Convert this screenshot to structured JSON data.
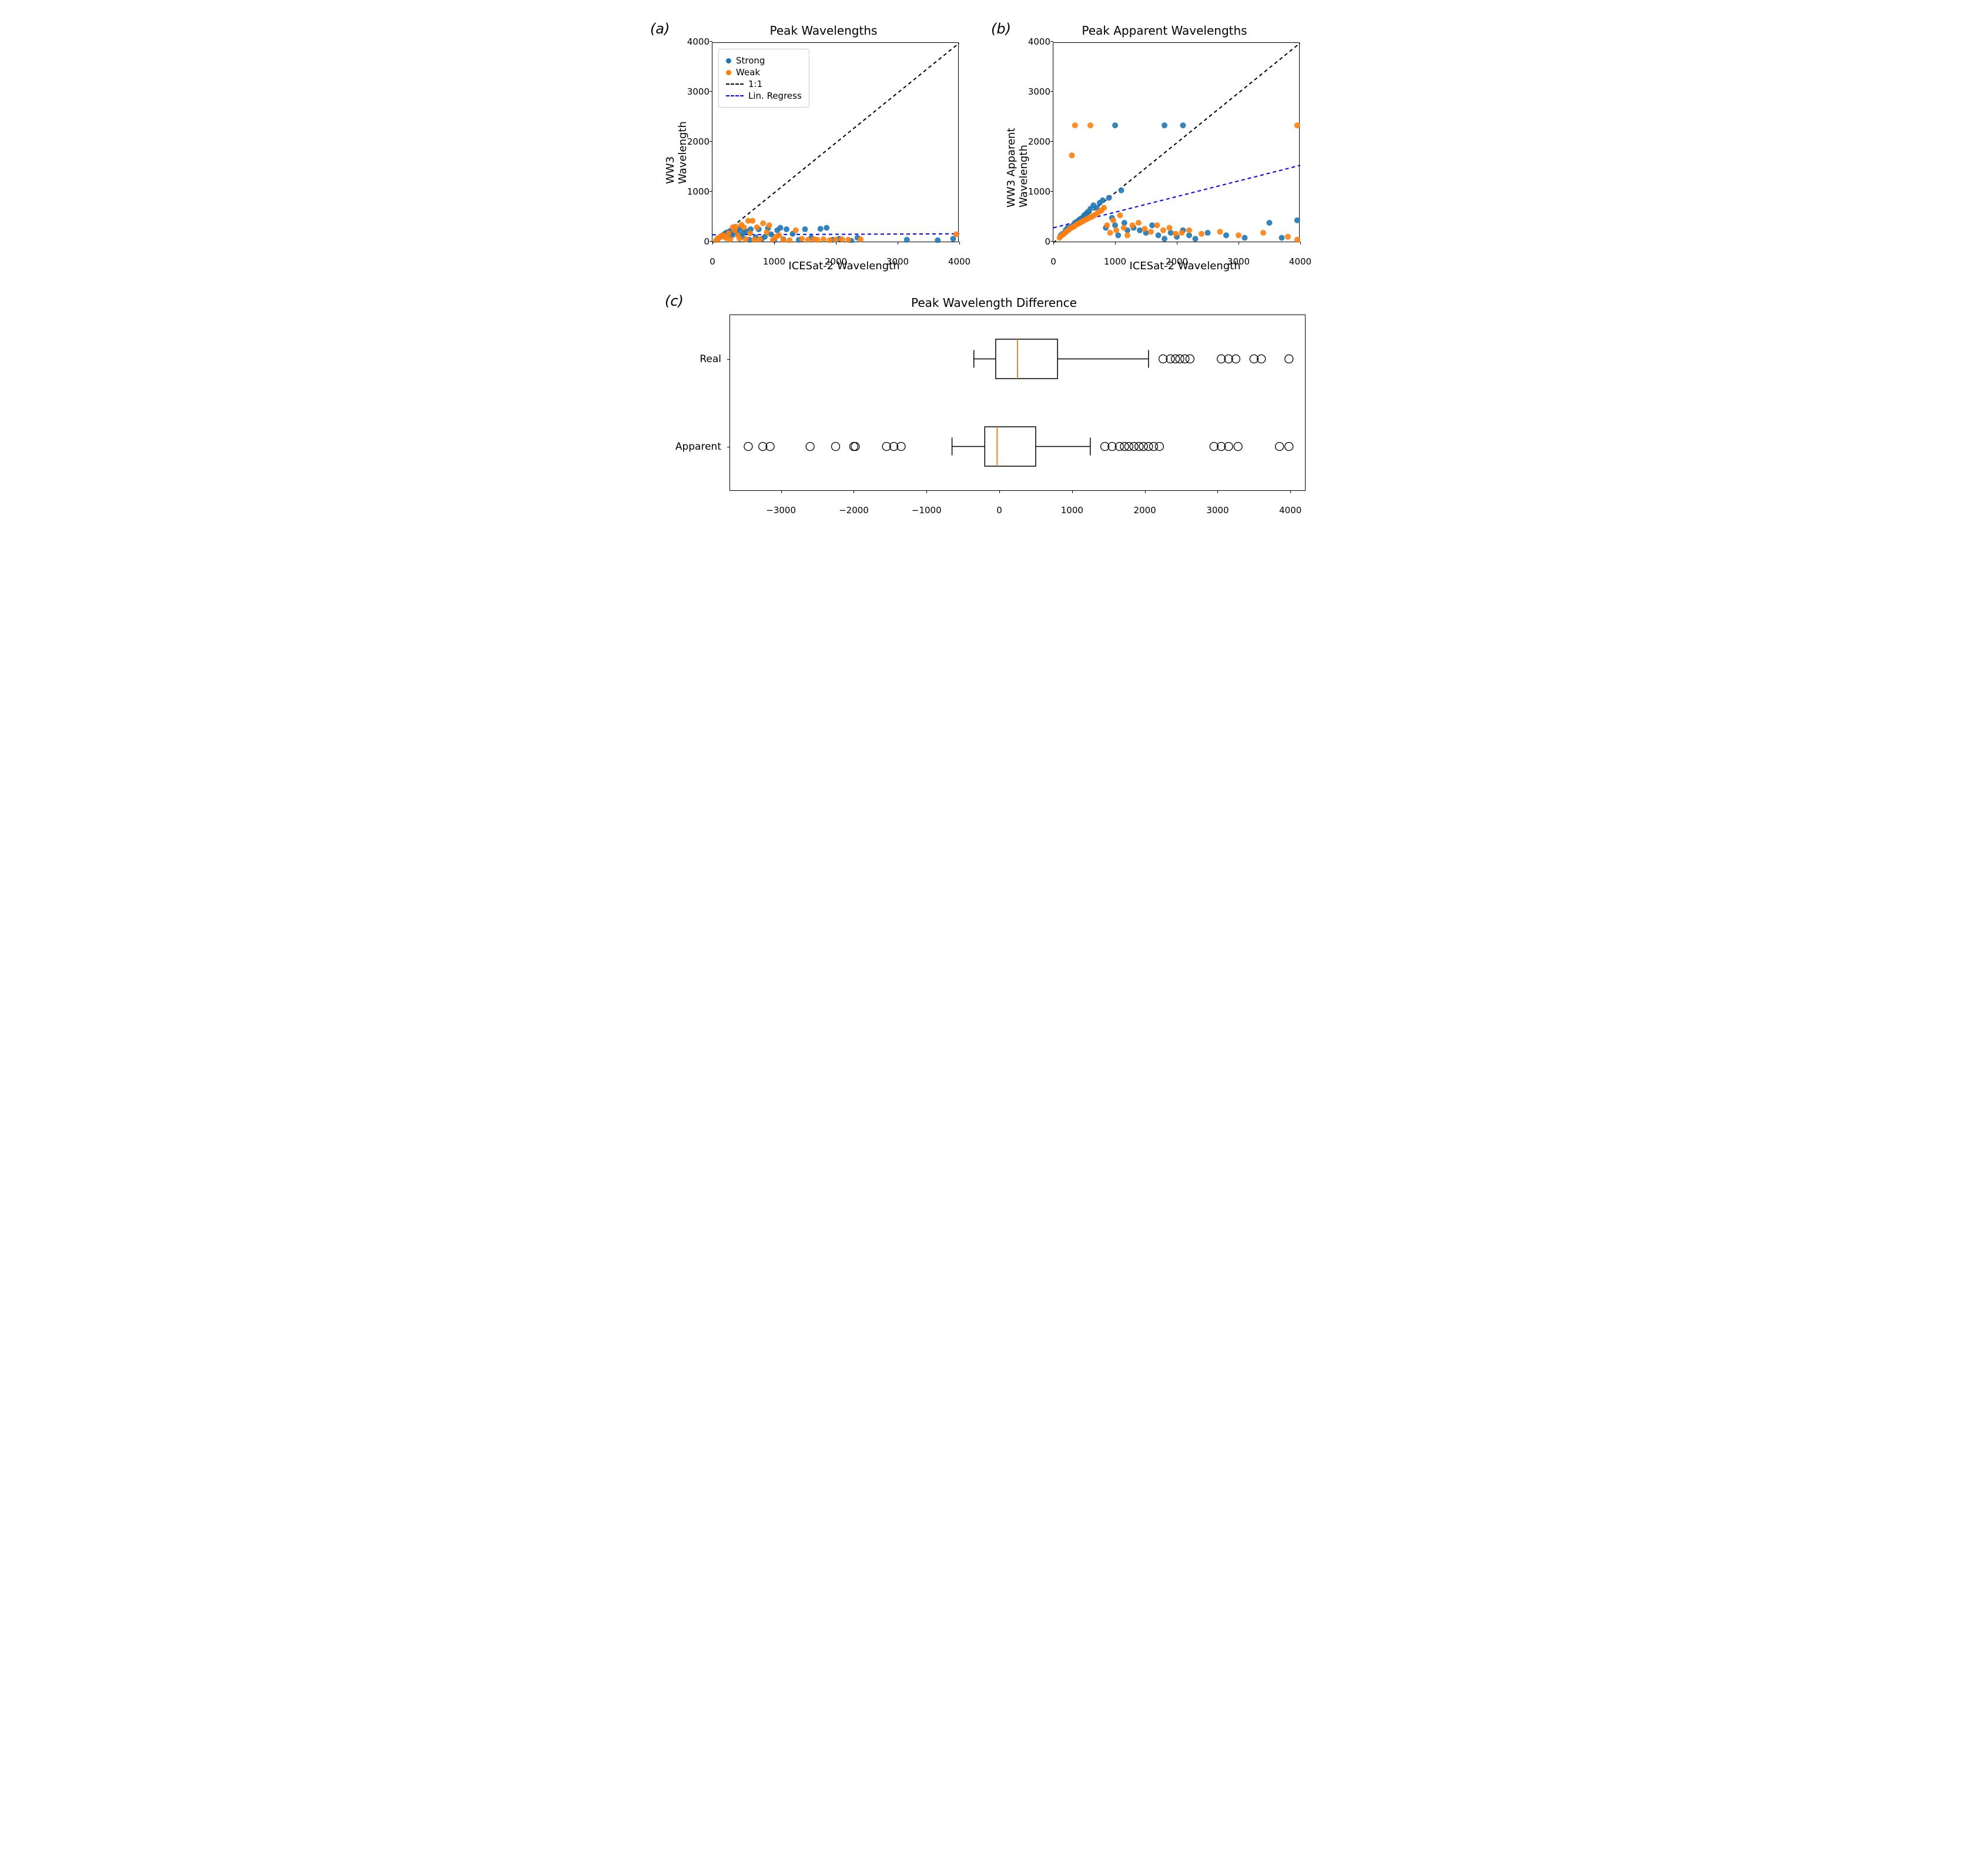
{
  "figure": {
    "panels": {
      "a": {
        "label": "(a)",
        "title": "Peak Wavelengths"
      },
      "b": {
        "label": "(b)",
        "title": "Peak Apparent Wavelengths"
      },
      "c": {
        "label": "(c)",
        "title": "Peak Wavelength Difference"
      }
    },
    "colors": {
      "strong": "#1f77b4",
      "weak": "#ff7f0e",
      "one_to_one": "#000000",
      "lin_regress": "#0000ff",
      "box_median": "#ff7f0e",
      "box_border": "#000000",
      "outlier_stroke": "#000000",
      "background": "#ffffff"
    },
    "marker_size": 5,
    "line_width": 2,
    "dash_pattern": "6,5",
    "font_family": "DejaVu Sans, Arial, sans-serif",
    "title_fontsize": 20,
    "label_fontsize": 18,
    "tick_fontsize": 15,
    "panel_label_fontsize": 24
  },
  "scatter_a": {
    "type": "scatter",
    "xlabel": "ICESat-2 Wavelength",
    "ylabel": "WW3 Wavelength",
    "xlim": [
      0,
      4000
    ],
    "ylim": [
      0,
      4000
    ],
    "xticks": [
      0,
      1000,
      2000,
      3000,
      4000
    ],
    "yticks": [
      0,
      1000,
      2000,
      3000,
      4000
    ],
    "one_to_one": {
      "x": [
        0,
        4000
      ],
      "y": [
        0,
        4000
      ]
    },
    "lin_regress": {
      "x": [
        0,
        4000
      ],
      "y": [
        160,
        180
      ]
    },
    "strong": [
      [
        80,
        70
      ],
      [
        120,
        110
      ],
      [
        150,
        140
      ],
      [
        180,
        160
      ],
      [
        200,
        180
      ],
      [
        220,
        200
      ],
      [
        250,
        210
      ],
      [
        270,
        170
      ],
      [
        300,
        240
      ],
      [
        320,
        150
      ],
      [
        350,
        200
      ],
      [
        400,
        260
      ],
      [
        420,
        180
      ],
      [
        450,
        290
      ],
      [
        480,
        120
      ],
      [
        500,
        200
      ],
      [
        550,
        230
      ],
      [
        600,
        60
      ],
      [
        620,
        270
      ],
      [
        700,
        110
      ],
      [
        750,
        270
      ],
      [
        800,
        80
      ],
      [
        850,
        120
      ],
      [
        900,
        290
      ],
      [
        950,
        170
      ],
      [
        1000,
        50
      ],
      [
        1050,
        250
      ],
      [
        1100,
        300
      ],
      [
        1150,
        70
      ],
      [
        1200,
        270
      ],
      [
        1300,
        180
      ],
      [
        1400,
        60
      ],
      [
        1500,
        270
      ],
      [
        1600,
        100
      ],
      [
        1750,
        280
      ],
      [
        1850,
        300
      ],
      [
        1950,
        60
      ],
      [
        2050,
        80
      ],
      [
        2250,
        40
      ],
      [
        2350,
        100
      ],
      [
        3150,
        60
      ],
      [
        3650,
        50
      ],
      [
        3900,
        80
      ]
    ],
    "weak": [
      [
        60,
        50
      ],
      [
        90,
        90
      ],
      [
        110,
        100
      ],
      [
        140,
        130
      ],
      [
        170,
        150
      ],
      [
        190,
        120
      ],
      [
        230,
        90
      ],
      [
        260,
        190
      ],
      [
        290,
        70
      ],
      [
        330,
        310
      ],
      [
        360,
        250
      ],
      [
        380,
        320
      ],
      [
        410,
        150
      ],
      [
        440,
        80
      ],
      [
        470,
        360
      ],
      [
        510,
        310
      ],
      [
        540,
        70
      ],
      [
        580,
        440
      ],
      [
        610,
        190
      ],
      [
        650,
        440
      ],
      [
        680,
        60
      ],
      [
        720,
        310
      ],
      [
        770,
        70
      ],
      [
        820,
        390
      ],
      [
        880,
        210
      ],
      [
        920,
        350
      ],
      [
        980,
        60
      ],
      [
        1030,
        120
      ],
      [
        1080,
        150
      ],
      [
        1150,
        60
      ],
      [
        1250,
        50
      ],
      [
        1350,
        250
      ],
      [
        1450,
        80
      ],
      [
        1550,
        60
      ],
      [
        1650,
        70
      ],
      [
        1700,
        60
      ],
      [
        1800,
        70
      ],
      [
        1900,
        50
      ],
      [
        2000,
        60
      ],
      [
        2100,
        70
      ],
      [
        2200,
        60
      ],
      [
        2400,
        70
      ],
      [
        3950,
        170
      ]
    ]
  },
  "scatter_b": {
    "type": "scatter",
    "xlabel": "ICESat-2 Wavelength",
    "ylabel": "WW3 Apparent Wavelength",
    "xlim": [
      0,
      4000
    ],
    "ylim": [
      0,
      4000
    ],
    "xticks": [
      0,
      1000,
      2000,
      3000,
      4000
    ],
    "yticks": [
      0,
      1000,
      2000,
      3000,
      4000
    ],
    "one_to_one": {
      "x": [
        0,
        4000
      ],
      "y": [
        0,
        4000
      ]
    },
    "lin_regress": {
      "x": [
        0,
        4000
      ],
      "y": [
        300,
        1550
      ]
    },
    "strong": [
      [
        120,
        150
      ],
      [
        150,
        180
      ],
      [
        180,
        200
      ],
      [
        200,
        250
      ],
      [
        230,
        300
      ],
      [
        260,
        280
      ],
      [
        290,
        320
      ],
      [
        320,
        350
      ],
      [
        350,
        400
      ],
      [
        380,
        420
      ],
      [
        410,
        450
      ],
      [
        440,
        480
      ],
      [
        470,
        500
      ],
      [
        500,
        550
      ],
      [
        530,
        580
      ],
      [
        560,
        620
      ],
      [
        600,
        680
      ],
      [
        650,
        750
      ],
      [
        700,
        700
      ],
      [
        750,
        800
      ],
      [
        800,
        850
      ],
      [
        850,
        300
      ],
      [
        900,
        900
      ],
      [
        950,
        500
      ],
      [
        1000,
        350
      ],
      [
        1050,
        150
      ],
      [
        1100,
        1050
      ],
      [
        1150,
        400
      ],
      [
        1200,
        250
      ],
      [
        1300,
        300
      ],
      [
        1400,
        250
      ],
      [
        1500,
        200
      ],
      [
        1600,
        350
      ],
      [
        1700,
        150
      ],
      [
        1800,
        80
      ],
      [
        1900,
        200
      ],
      [
        2000,
        120
      ],
      [
        2100,
        250
      ],
      [
        2200,
        150
      ],
      [
        2300,
        80
      ],
      [
        2500,
        200
      ],
      [
        2800,
        150
      ],
      [
        3100,
        100
      ],
      [
        3500,
        400
      ],
      [
        3700,
        100
      ],
      [
        3950,
        450
      ],
      [
        1000,
        2350
      ],
      [
        1800,
        2350
      ],
      [
        2100,
        2350
      ]
    ],
    "weak": [
      [
        100,
        100
      ],
      [
        130,
        140
      ],
      [
        160,
        170
      ],
      [
        190,
        200
      ],
      [
        220,
        230
      ],
      [
        250,
        260
      ],
      [
        280,
        290
      ],
      [
        310,
        310
      ],
      [
        340,
        330
      ],
      [
        370,
        360
      ],
      [
        400,
        380
      ],
      [
        430,
        400
      ],
      [
        460,
        420
      ],
      [
        490,
        440
      ],
      [
        520,
        460
      ],
      [
        550,
        480
      ],
      [
        580,
        500
      ],
      [
        620,
        520
      ],
      [
        660,
        550
      ],
      [
        700,
        580
      ],
      [
        740,
        620
      ],
      [
        780,
        650
      ],
      [
        820,
        700
      ],
      [
        870,
        350
      ],
      [
        920,
        200
      ],
      [
        970,
        450
      ],
      [
        1020,
        250
      ],
      [
        1080,
        550
      ],
      [
        1140,
        300
      ],
      [
        1200,
        150
      ],
      [
        1280,
        350
      ],
      [
        1380,
        400
      ],
      [
        1480,
        280
      ],
      [
        1580,
        220
      ],
      [
        1680,
        350
      ],
      [
        1780,
        250
      ],
      [
        1880,
        300
      ],
      [
        1980,
        180
      ],
      [
        2080,
        200
      ],
      [
        2200,
        250
      ],
      [
        2400,
        180
      ],
      [
        2700,
        220
      ],
      [
        3000,
        150
      ],
      [
        3400,
        200
      ],
      [
        3800,
        120
      ],
      [
        3950,
        60
      ],
      [
        300,
        1750
      ],
      [
        350,
        2350
      ],
      [
        600,
        2350
      ],
      [
        3950,
        2350
      ]
    ]
  },
  "legend": {
    "items": [
      {
        "type": "dot",
        "color_key": "strong",
        "label": "Strong"
      },
      {
        "type": "dot",
        "color_key": "weak",
        "label": "Weak"
      },
      {
        "type": "line",
        "color_key": "one_to_one",
        "label": "1:1"
      },
      {
        "type": "line",
        "color_key": "lin_regress",
        "label": "Lin. Regress"
      }
    ]
  },
  "boxplot_c": {
    "type": "boxplot",
    "xlim": [
      -3700,
      4200
    ],
    "xticks": [
      -3000,
      -2000,
      -1000,
      0,
      1000,
      2000,
      3000,
      4000
    ],
    "categories": [
      "Real",
      "Apparent"
    ],
    "boxes": {
      "Real": {
        "whisker_low": -350,
        "q1": -50,
        "median": 250,
        "q3": 800,
        "whisker_high": 2050,
        "outliers": [
          2250,
          2350,
          2420,
          2480,
          2550,
          2620,
          3050,
          3150,
          3250,
          3500,
          3600,
          3980
        ]
      },
      "Apparent": {
        "whisker_low": -650,
        "q1": -200,
        "median": -30,
        "q3": 500,
        "whisker_high": 1250,
        "outliers": [
          -3450,
          -3250,
          -3150,
          -2600,
          -2250,
          -2000,
          -1980,
          -1550,
          -1450,
          -1350,
          1450,
          1550,
          1650,
          1720,
          1780,
          1850,
          1920,
          1980,
          2050,
          2120,
          2200,
          2950,
          3050,
          3150,
          3280,
          3850,
          3980
        ]
      }
    }
  }
}
